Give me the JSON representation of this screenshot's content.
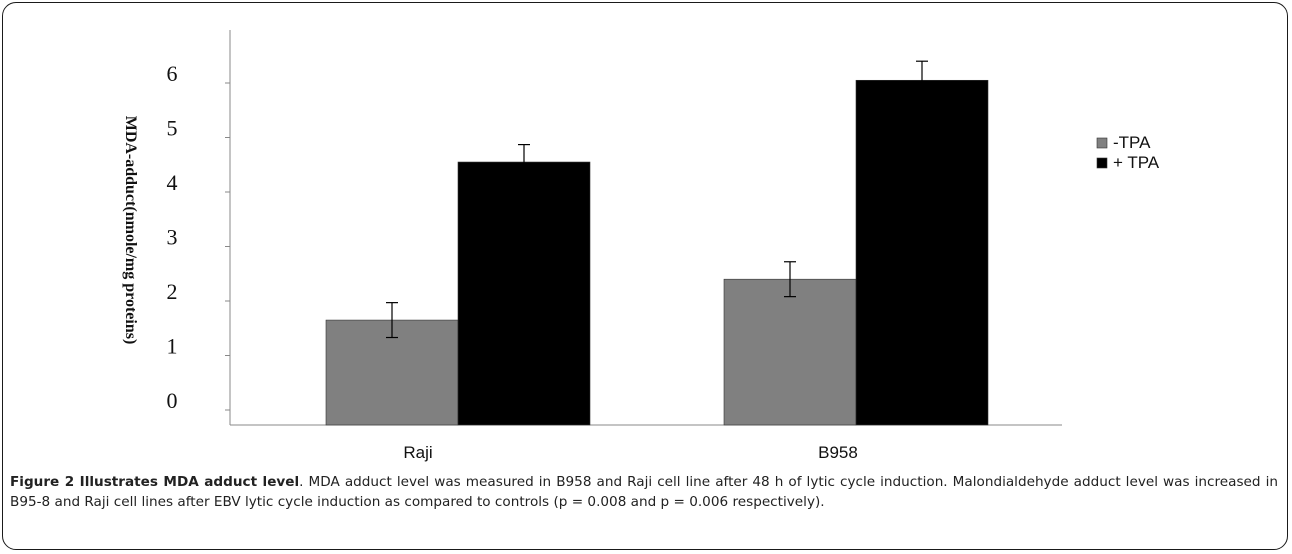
{
  "chart_data": {
    "type": "bar",
    "ylabel": "MDA-adduct(nmole/mg proteins)",
    "xlabel": "",
    "categories": [
      "Raji",
      "B958"
    ],
    "yticks": [
      "0",
      "1",
      "2",
      "3",
      "4",
      "5",
      "6"
    ],
    "ylim": [
      0,
      6.5
    ],
    "series": [
      {
        "name": "-TPA",
        "values": [
          1.65,
          2.4
        ],
        "errors": [
          0.32,
          0.32
        ],
        "color": "#808080"
      },
      {
        "name": "+ TPA",
        "values": [
          4.55,
          6.05
        ],
        "errors": [
          0.32,
          0.35
        ],
        "color": "#000000"
      }
    ],
    "legend_position": "right",
    "grid": false
  },
  "caption": {
    "title": "Figure 2 Illustrates MDA adduct level",
    "text": ". MDA adduct level was measured in B958 and Raji cell line after 48 h of lytic cycle induction. Malondialdehyde adduct level was increased in B95-8 and Raji cell lines after EBV lytic cycle induction as compared to controls (p = 0.008 and p = 0.006 respectively)."
  }
}
